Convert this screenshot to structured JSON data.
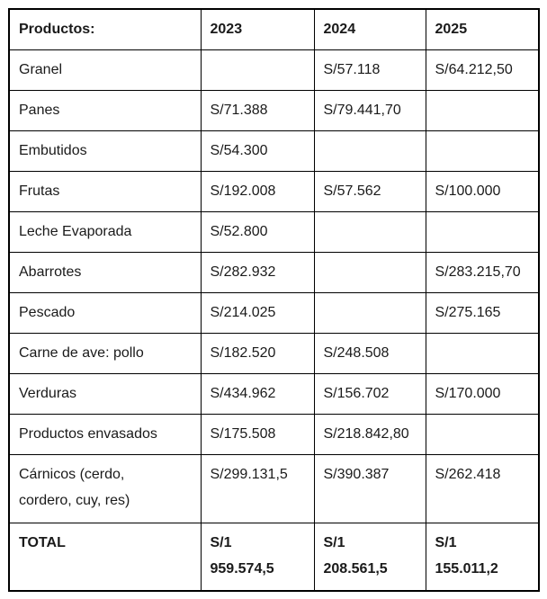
{
  "table": {
    "header": [
      "Productos:",
      "2023",
      "2024",
      "2025"
    ],
    "currency_prefix": "S/",
    "rows": [
      {
        "cells": [
          "Granel",
          "",
          "S/57.118",
          "S/64.212,50"
        ],
        "is_total": false
      },
      {
        "cells": [
          "Panes",
          "S/71.388",
          "S/79.441,70",
          ""
        ],
        "is_total": false
      },
      {
        "cells": [
          "Embutidos",
          "S/54.300",
          "",
          ""
        ],
        "is_total": false
      },
      {
        "cells": [
          "Frutas",
          "S/192.008",
          "S/57.562",
          "S/100.000"
        ],
        "is_total": false
      },
      {
        "cells": [
          "Leche Evaporada",
          "S/52.800",
          "",
          ""
        ],
        "is_total": false
      },
      {
        "cells": [
          "Abarrotes",
          "S/282.932",
          "",
          "S/283.215,70"
        ],
        "is_total": false
      },
      {
        "cells": [
          "Pescado",
          "S/214.025",
          "",
          "S/275.165"
        ],
        "is_total": false
      },
      {
        "cells": [
          "Carne de ave: pollo",
          "S/182.520",
          "S/248.508",
          ""
        ],
        "is_total": false
      },
      {
        "cells": [
          "Verduras",
          "S/434.962",
          "S/156.702",
          "S/170.000"
        ],
        "is_total": false
      },
      {
        "cells": [
          "Productos envasados",
          "S/175.508",
          "S/218.842,80",
          ""
        ],
        "is_total": false
      },
      {
        "cells": [
          "Cárnicos (cerdo,\ncordero, cuy, res)",
          "S/299.131,5",
          "S/390.387",
          "S/262.418"
        ],
        "is_total": false
      },
      {
        "cells": [
          "TOTAL",
          "S/1\n959.574,5",
          "S/1\n208.561,5",
          "S/1\n155.011,2"
        ],
        "is_total": true
      }
    ]
  }
}
